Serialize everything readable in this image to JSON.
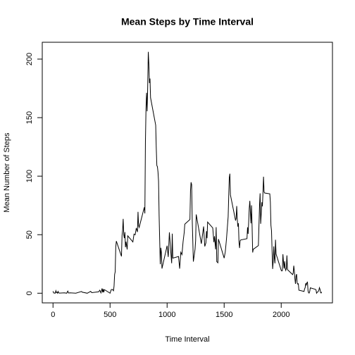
{
  "chart_data": {
    "type": "line",
    "title": "Mean Steps by Time Interval",
    "x_label": "Time Interval",
    "y_label": "Mean Number of Steps",
    "x": [
      0,
      5,
      10,
      15,
      20,
      25,
      30,
      35,
      40,
      45,
      50,
      55,
      100,
      120,
      125,
      130,
      135,
      150,
      200,
      250,
      255,
      300,
      330,
      340,
      400,
      410,
      420,
      430,
      435,
      440,
      445,
      450,
      500,
      510,
      520,
      530,
      535,
      540,
      545,
      550,
      555,
      600,
      605,
      610,
      615,
      620,
      625,
      630,
      635,
      640,
      650,
      655,
      700,
      710,
      720,
      730,
      740,
      745,
      750,
      755,
      800,
      805,
      810,
      815,
      820,
      825,
      830,
      835,
      840,
      845,
      850,
      855,
      900,
      905,
      910,
      915,
      920,
      925,
      930,
      935,
      940,
      945,
      950,
      955,
      1000,
      1010,
      1020,
      1030,
      1040,
      1045,
      1050,
      1100,
      1110,
      1120,
      1130,
      1140,
      1150,
      1155,
      1200,
      1205,
      1210,
      1215,
      1220,
      1230,
      1245,
      1250,
      1255,
      1300,
      1320,
      1330,
      1340,
      1345,
      1350,
      1355,
      1400,
      1410,
      1415,
      1425,
      1430,
      1435,
      1445,
      1450,
      1500,
      1510,
      1520,
      1535,
      1540,
      1545,
      1550,
      1555,
      1600,
      1605,
      1610,
      1615,
      1620,
      1625,
      1630,
      1635,
      1640,
      1645,
      1700,
      1705,
      1710,
      1715,
      1720,
      1725,
      1730,
      1735,
      1740,
      1745,
      1750,
      1755,
      1800,
      1805,
      1810,
      1815,
      1820,
      1825,
      1830,
      1835,
      1840,
      1845,
      1850,
      1855,
      1900,
      1905,
      1910,
      1915,
      1920,
      1925,
      1930,
      1935,
      1940,
      1945,
      1950,
      1955,
      2000,
      2005,
      2010,
      2015,
      2020,
      2025,
      2030,
      2035,
      2040,
      2045,
      2050,
      2055,
      2100,
      2105,
      2110,
      2115,
      2120,
      2125,
      2130,
      2135,
      2140,
      2145,
      2150,
      2155,
      2200,
      2205,
      2210,
      2215,
      2220,
      2225,
      2230,
      2235,
      2240,
      2245,
      2250,
      2255,
      2300,
      2305,
      2310,
      2315,
      2320,
      2325,
      2330,
      2335,
      2340,
      2345,
      2350,
      2355
    ],
    "values": [
      1.7,
      0.3,
      0.1,
      0.2,
      0.1,
      2.1,
      0.5,
      0.9,
      0,
      1.5,
      0.3,
      0.1,
      0.3,
      0,
      1.1,
      1.8,
      0.2,
      0.3,
      0,
      1.5,
      0.9,
      0,
      1.6,
      0.5,
      1.2,
      2.6,
      0.3,
      4.1,
      0.7,
      3.5,
      0.8,
      3.1,
      0,
      3.0,
      3.3,
      2.1,
      6.1,
      16.0,
      18.3,
      39.5,
      44.5,
      31.5,
      49.3,
      53.8,
      63.5,
      50.0,
      47.1,
      52.2,
      39.3,
      44.0,
      37.4,
      49.0,
      43.8,
      50.5,
      49.9,
      55.7,
      52.3,
      69.5,
      57.8,
      56.2,
      73.4,
      68.2,
      129.4,
      157.5,
      171.2,
      155.4,
      177.3,
      206.2,
      195.9,
      179.6,
      183.4,
      167.0,
      143.5,
      124.0,
      109.1,
      108.1,
      103.7,
      95.9,
      66.2,
      45.2,
      24.8,
      38.8,
      35.0,
      21.1,
      40.6,
      31.0,
      52.0,
      38.0,
      25.6,
      50.9,
      30,
      31.4,
      21,
      35,
      33,
      44,
      52,
      59,
      63,
      87.7,
      94.8,
      92.8,
      63.4,
      27,
      37.7,
      45,
      67.3,
      42.3,
      57,
      40,
      43,
      53,
      47,
      60.8,
      55.8,
      43.6,
      48.7,
      37.5,
      56.4,
      27,
      26,
      46.2,
      30,
      35.5,
      45.9,
      65.3,
      82.9,
      98.7,
      102.1,
      84.0,
      62.1,
      64.1,
      74.5,
      63.2,
      56.9,
      59.8,
      43.9,
      38.6,
      44.7,
      45.5,
      46.6,
      56.3,
      50.7,
      61.2,
      72.7,
      78.9,
      68.9,
      59.7,
      75.1,
      56.5,
      34.8,
      37.5,
      40.7,
      58.0,
      74.7,
      85.3,
      59.3,
      67.8,
      77.7,
      74.2,
      85.3,
      99.5,
      86.6,
      85.6,
      84.9,
      77.8,
      58.0,
      53.4,
      36.3,
      20.7,
      27.4,
      40.0,
      30.2,
      25.5,
      45.7,
      33.5,
      19.6,
      19.0,
      19.3,
      33.3,
      26.8,
      21.2,
      27.3,
      21.3,
      19.5,
      21.3,
      32.3,
      20.2,
      15.9,
      17.2,
      23.5,
      19.2,
      12.5,
      8.0,
      14.7,
      16.3,
      8.7,
      7.8,
      8.1,
      2.6,
      1.5,
      3.7,
      4.8,
      8.5,
      7.1,
      8.7,
      9.8,
      2.2,
      0.3,
      0.1,
      1.6,
      4.6,
      3.3,
      2.8,
      0,
      0.8,
      1.0,
      1.6,
      2.6,
      4.7,
      3.3,
      0.6,
      0.2,
      1.1
    ],
    "color": "#000000",
    "xlim": [
      -94.2,
      2449.2
    ],
    "xticks": [
      0,
      500,
      1000,
      1500,
      2000
    ],
    "ylim": [
      -8.25,
      214.4
    ],
    "yticks": [
      0,
      50,
      100,
      150,
      200
    ]
  }
}
